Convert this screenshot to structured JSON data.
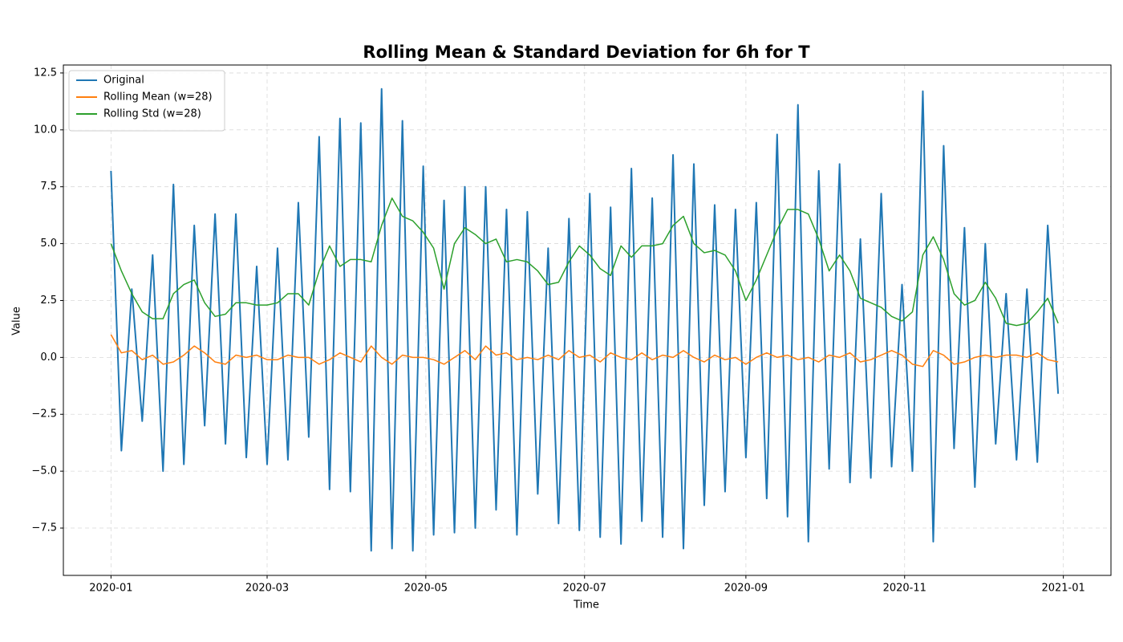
{
  "chart_data": {
    "type": "line",
    "title": "Rolling Mean & Standard Deviation for 6h for T",
    "xlabel": "Time",
    "ylabel": "Value",
    "x": [
      0,
      4,
      8,
      12,
      16,
      20,
      24,
      28,
      32,
      36,
      40,
      44,
      48,
      52,
      56,
      60,
      64,
      68,
      72,
      76,
      80,
      84,
      88,
      92,
      96,
      100,
      104,
      108,
      112,
      116,
      120,
      124,
      128,
      132,
      136,
      140,
      144,
      148,
      152,
      156,
      160,
      164,
      168,
      172,
      176,
      180,
      184,
      188,
      192,
      196,
      200,
      204,
      208,
      212,
      216,
      220,
      224,
      228,
      232,
      236,
      240,
      244,
      248,
      252,
      256,
      260,
      264,
      268,
      272,
      276,
      280,
      284,
      288,
      292,
      296,
      300,
      304,
      308,
      312,
      316,
      320,
      324,
      328,
      332,
      336,
      340,
      344,
      348,
      352,
      356,
      360,
      364
    ],
    "series": [
      {
        "name": "Original",
        "color": "#1f77b4",
        "width": 2,
        "values": [
          8.2,
          -4.1,
          3.0,
          -2.8,
          4.5,
          -5.0,
          7.6,
          -4.7,
          5.8,
          -3.0,
          6.3,
          -3.8,
          6.3,
          -4.4,
          4.0,
          -4.7,
          4.8,
          -4.5,
          6.8,
          -3.5,
          9.7,
          -5.8,
          10.5,
          -5.9,
          10.3,
          -8.5,
          11.8,
          -8.4,
          10.4,
          -8.5,
          8.4,
          -7.8,
          6.9,
          -7.7,
          7.5,
          -7.5,
          7.5,
          -6.7,
          6.5,
          -7.8,
          6.4,
          -6.0,
          4.8,
          -7.3,
          6.1,
          -7.6,
          7.2,
          -7.9,
          6.6,
          -8.2,
          8.3,
          -7.2,
          7.0,
          -7.9,
          8.9,
          -8.4,
          8.5,
          -6.5,
          6.7,
          -5.9,
          6.5,
          -4.4,
          6.8,
          -6.2,
          9.8,
          -7.0,
          11.1,
          -8.1,
          8.2,
          -4.9,
          8.5,
          -5.5,
          5.2,
          -5.3,
          7.2,
          -4.8,
          3.2,
          -5.0,
          11.7,
          -8.1,
          9.3,
          -4.0,
          5.7,
          -5.7,
          5.0,
          -3.8,
          2.8,
          -4.5,
          3.0,
          -4.6,
          5.8,
          -1.6
        ]
      },
      {
        "name": "Rolling Mean (w=28)",
        "color": "#ff7f0e",
        "width": 1.5,
        "values": [
          1.0,
          0.2,
          0.3,
          -0.1,
          0.1,
          -0.3,
          -0.2,
          0.1,
          0.5,
          0.2,
          -0.2,
          -0.3,
          0.1,
          0.0,
          0.1,
          -0.1,
          -0.1,
          0.1,
          0.0,
          0.0,
          -0.3,
          -0.1,
          0.2,
          0.0,
          -0.2,
          0.5,
          0.0,
          -0.3,
          0.1,
          0.0,
          0.0,
          -0.1,
          -0.3,
          0.0,
          0.3,
          -0.1,
          0.5,
          0.1,
          0.2,
          -0.1,
          0.0,
          -0.1,
          0.1,
          -0.1,
          0.3,
          0.0,
          0.1,
          -0.2,
          0.2,
          0.0,
          -0.1,
          0.2,
          -0.1,
          0.1,
          0.0,
          0.3,
          0.0,
          -0.2,
          0.1,
          -0.1,
          0.0,
          -0.3,
          0.0,
          0.2,
          0.0,
          0.1,
          -0.1,
          0.0,
          -0.2,
          0.1,
          0.0,
          0.2,
          -0.2,
          -0.1,
          0.1,
          0.3,
          0.1,
          -0.3,
          -0.4,
          0.3,
          0.1,
          -0.3,
          -0.2,
          0.0,
          0.1,
          0.0,
          0.1,
          0.1,
          0.0,
          0.2,
          -0.1,
          -0.2
        ]
      },
      {
        "name": "Rolling Std (w=28)",
        "color": "#2ca02c",
        "width": 1.5,
        "values": [
          5.0,
          3.8,
          2.8,
          2.0,
          1.7,
          1.7,
          2.8,
          3.2,
          3.4,
          2.4,
          1.8,
          1.9,
          2.4,
          2.4,
          2.3,
          2.3,
          2.4,
          2.8,
          2.8,
          2.3,
          3.8,
          4.9,
          4.0,
          4.3,
          4.3,
          4.2,
          5.8,
          7.0,
          6.2,
          6.0,
          5.5,
          4.8,
          3.0,
          5.0,
          5.7,
          5.4,
          5.0,
          5.2,
          4.2,
          4.3,
          4.2,
          3.8,
          3.2,
          3.3,
          4.2,
          4.9,
          4.5,
          3.9,
          3.6,
          4.9,
          4.4,
          4.9,
          4.9,
          5.0,
          5.8,
          6.2,
          5.0,
          4.6,
          4.7,
          4.5,
          3.8,
          2.5,
          3.4,
          4.5,
          5.6,
          6.5,
          6.5,
          6.3,
          5.2,
          3.8,
          4.5,
          3.8,
          2.6,
          2.4,
          2.2,
          1.8,
          1.6,
          2.0,
          4.5,
          5.3,
          4.3,
          2.8,
          2.3,
          2.5,
          3.3,
          2.6,
          1.5,
          1.4,
          1.5,
          2.0,
          2.6,
          1.5
        ]
      }
    ],
    "xlim": [
      -18.3,
      384.3
    ],
    "xticks": [
      {
        "value": 0,
        "label": "2020-01"
      },
      {
        "value": 60,
        "label": "2020-03"
      },
      {
        "value": 121,
        "label": "2020-05"
      },
      {
        "value": 182,
        "label": "2020-07"
      },
      {
        "value": 244,
        "label": "2020-09"
      },
      {
        "value": 305,
        "label": "2020-11"
      },
      {
        "value": 366,
        "label": "2021-01"
      }
    ],
    "ylim": [
      -9.58,
      12.85
    ],
    "yticks": [
      12.5,
      {
        "value": 10,
        "label": "10.0"
      },
      7.5,
      {
        "value": 5,
        "label": "5.0"
      },
      2.5,
      {
        "value": 0,
        "label": "0.0"
      },
      {
        "value": -2.5,
        "label": "−2.5"
      },
      {
        "value": -5,
        "label": "−5.0"
      },
      {
        "value": -7.5,
        "label": "−7.5"
      }
    ],
    "grid": true,
    "legend": "upper left"
  }
}
